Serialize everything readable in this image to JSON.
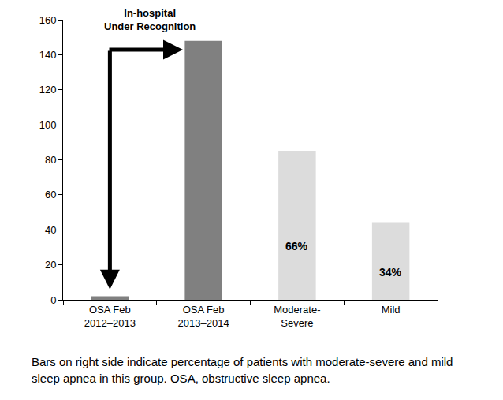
{
  "chart_data": {
    "type": "bar",
    "categories": [
      "OSA Feb\n2012–2013",
      "OSA Feb\n2013–2014",
      "Moderate-\nSevere",
      "Mild"
    ],
    "values": [
      2,
      148,
      85,
      44
    ],
    "colors": [
      "#808080",
      "#808080",
      "#dcdcdc",
      "#dcdcdc"
    ],
    "ylim": [
      0,
      160
    ],
    "yticks": [
      0,
      20,
      40,
      60,
      80,
      100,
      120,
      140,
      160
    ],
    "grid": false,
    "annotations": [
      {
        "text": "In-hospital\nUnder Recognition"
      },
      {
        "text": "66%",
        "category": "Moderate-\nSevere"
      },
      {
        "text": "34%",
        "category": "Mild"
      }
    ],
    "caption": "Bars on right side indicate percentage of patients with moderate-severe and mild sleep apnea in this group. OSA, obstructive sleep apnea."
  }
}
